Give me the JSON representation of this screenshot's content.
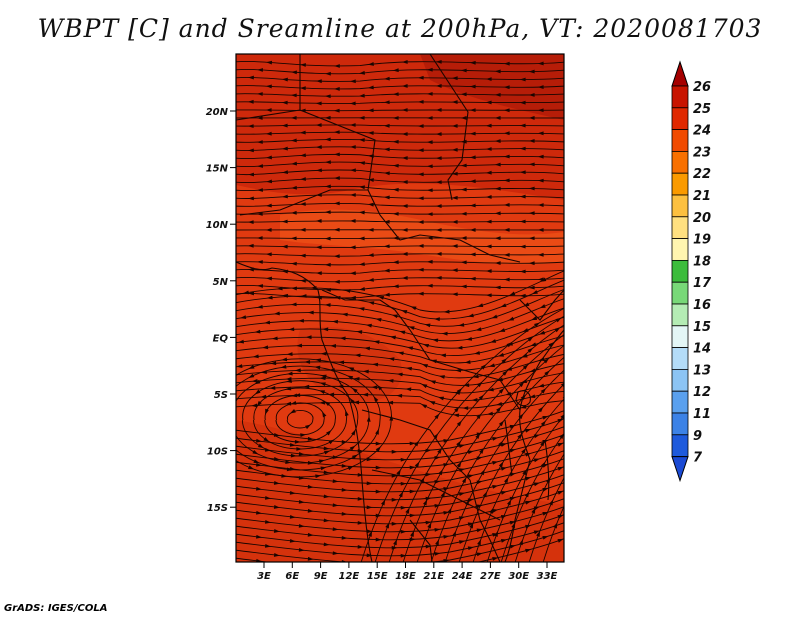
{
  "title": "WBPT [C] and Sreamline at 200hPa, VT: 2020081703",
  "credit": "GrADS: IGES/COLA",
  "map": {
    "lat_labels": [
      "20N",
      "15N",
      "10N",
      "5N",
      "EQ",
      "5S",
      "10S",
      "15S"
    ],
    "lon_labels": [
      "3E",
      "6E",
      "9E",
      "12E",
      "15E",
      "18E",
      "21E",
      "24E",
      "27E",
      "30E",
      "33E"
    ],
    "base_color": "#e03a10",
    "streamline_color": "#1a0500"
  },
  "colorbar": {
    "labels": [
      "26",
      "25",
      "24",
      "23",
      "22",
      "21",
      "20",
      "19",
      "18",
      "17",
      "16",
      "15",
      "14",
      "13",
      "12",
      "11",
      "9",
      "7"
    ],
    "colors": [
      "#a50000",
      "#c81400",
      "#e02800",
      "#f04a00",
      "#f87000",
      "#fa9a00",
      "#fcc040",
      "#ffe080",
      "#fff5b0",
      "#3cbc3c",
      "#78d878",
      "#b4ecb4",
      "#e4f6f6",
      "#b4dcf8",
      "#8cc4f4",
      "#5aa0ee",
      "#3c82e6",
      "#1e5adc",
      "#1a4ad4"
    ]
  }
}
